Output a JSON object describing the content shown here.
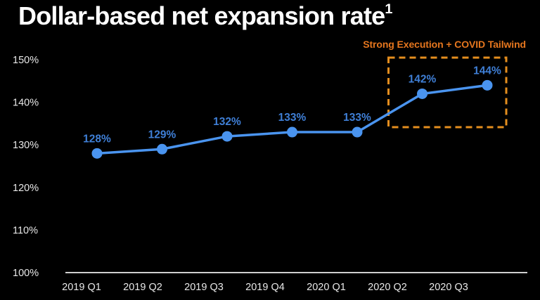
{
  "page": {
    "background_color": "#000000"
  },
  "title": {
    "text": "Dollar-based net expansion rate",
    "superscript": "1",
    "color": "#FFFFFF"
  },
  "chart_data": {
    "type": "line",
    "title": "Dollar-based net expansion rate",
    "categories": [
      "2019 Q1",
      "2019 Q2",
      "2019 Q3",
      "2019 Q4",
      "2020 Q1",
      "2020 Q2",
      "2020 Q3"
    ],
    "values": [
      128,
      129,
      132,
      133,
      133,
      142,
      144
    ],
    "point_labels": [
      "128%",
      "129%",
      "132%",
      "133%",
      "133%",
      "142%",
      "144%"
    ],
    "xlabel": "",
    "ylabel": "",
    "ylim": [
      100,
      150
    ],
    "yticks": [
      100,
      110,
      120,
      130,
      140,
      150
    ],
    "ytick_labels": [
      "100%",
      "110%",
      "120%",
      "130%",
      "140%",
      "150%"
    ],
    "grid": false,
    "legend": "none",
    "annotation": {
      "label": "Strong Execution + COVID Tailwind",
      "highlight_start_category": "2020 Q2",
      "highlight_end_category": "2020 Q3"
    },
    "colors": {
      "line": "#4A94EF",
      "point": "#4A94EF",
      "point_label": "#3F7FD6",
      "axis_text": "#E8E8E8",
      "axis_line": "#CFCFCF",
      "highlight_box": "#E58E1E",
      "annotation_text": "#E5761E"
    }
  }
}
